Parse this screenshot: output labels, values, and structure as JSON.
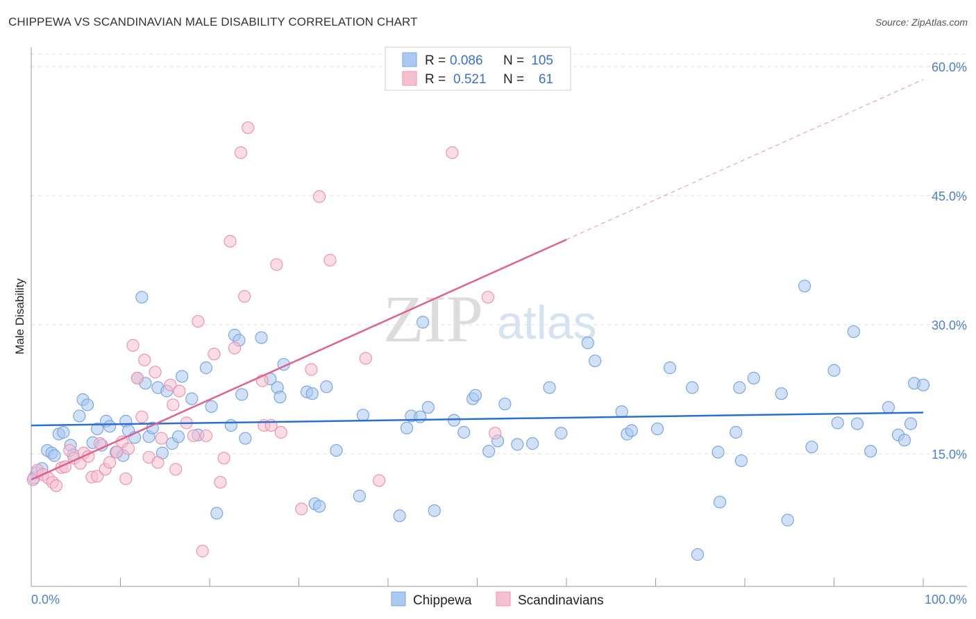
{
  "title": "CHIPPEWA VS SCANDINAVIAN MALE DISABILITY CORRELATION CHART",
  "source": "Source: ZipAtlas.com",
  "watermark": {
    "part1": "ZIP",
    "part2": "atlas"
  },
  "colors": {
    "chippewa_fill": "#aac8f0",
    "chippewa_stroke": "#7aa6e0",
    "chippewa_line": "#2a6fd0",
    "scandinavian_fill": "#f6bfd0",
    "scandinavian_stroke": "#ec95b0",
    "scandinavian_line": "#e06090",
    "tick_text": "#4a7fd0",
    "grid": "#dddddd"
  },
  "legend_top": {
    "rows": [
      {
        "r_label": "R =",
        "r_value": "0.086",
        "n_label": "N =",
        "n_value": "105"
      },
      {
        "r_label": "R =",
        "r_value": "0.521",
        "n_label": "N =",
        "n_value": "61"
      }
    ]
  },
  "legend_bottom": [
    "Chippewa",
    "Scandinavians"
  ],
  "chart_data": {
    "type": "scatter",
    "title": "CHIPPEWA VS SCANDINAVIAN MALE DISABILITY CORRELATION CHART",
    "xlabel": "",
    "ylabel": "Male Disability",
    "xlim": [
      0,
      100
    ],
    "ylim": [
      0,
      62
    ],
    "x_tick_labels": [
      "0.0%",
      "100.0%"
    ],
    "y_ticks": [
      15,
      30,
      45,
      60
    ],
    "y_tick_labels": [
      "15.0%",
      "30.0%",
      "45.0%",
      "60.0%"
    ],
    "grid": "horizontal dashed",
    "legend_position": "top-center",
    "series": [
      {
        "name": "Chippewa",
        "r": 0.086,
        "n": 105,
        "trend": {
          "x": [
            0,
            100
          ],
          "y": [
            18.3,
            19.8
          ]
        },
        "points": [
          [
            0.3,
            12.2
          ],
          [
            0.6,
            12.8
          ],
          [
            1.2,
            13.3
          ],
          [
            1.8,
            15.4
          ],
          [
            2.3,
            15.1
          ],
          [
            2.6,
            14.8
          ],
          [
            3.1,
            17.3
          ],
          [
            3.6,
            17.5
          ],
          [
            4.4,
            16.0
          ],
          [
            4.7,
            14.9
          ],
          [
            5.4,
            19.4
          ],
          [
            5.8,
            21.3
          ],
          [
            6.3,
            20.7
          ],
          [
            6.9,
            16.3
          ],
          [
            7.4,
            17.9
          ],
          [
            7.9,
            16.0
          ],
          [
            8.4,
            18.8
          ],
          [
            8.8,
            18.2
          ],
          [
            9.5,
            15.2
          ],
          [
            10.3,
            14.8
          ],
          [
            10.6,
            18.8
          ],
          [
            10.9,
            17.7
          ],
          [
            11.6,
            16.9
          ],
          [
            11.9,
            23.8
          ],
          [
            12.4,
            33.2
          ],
          [
            12.8,
            23.2
          ],
          [
            13.2,
            17.0
          ],
          [
            13.6,
            18.0
          ],
          [
            14.2,
            22.7
          ],
          [
            14.7,
            15.1
          ],
          [
            15.2,
            22.3
          ],
          [
            15.8,
            16.2
          ],
          [
            16.5,
            17.0
          ],
          [
            16.9,
            24.0
          ],
          [
            18.0,
            21.4
          ],
          [
            18.7,
            17.2
          ],
          [
            19.6,
            25.0
          ],
          [
            20.2,
            20.5
          ],
          [
            20.8,
            8.1
          ],
          [
            22.4,
            18.3
          ],
          [
            22.8,
            28.8
          ],
          [
            23.3,
            28.2
          ],
          [
            23.6,
            21.9
          ],
          [
            24.0,
            16.8
          ],
          [
            25.8,
            28.5
          ],
          [
            26.8,
            23.7
          ],
          [
            27.6,
            22.7
          ],
          [
            27.9,
            21.6
          ],
          [
            28.3,
            25.4
          ],
          [
            30.9,
            22.2
          ],
          [
            31.5,
            22.0
          ],
          [
            31.8,
            9.2
          ],
          [
            32.3,
            8.9
          ],
          [
            33.1,
            22.8
          ],
          [
            34.2,
            15.4
          ],
          [
            36.8,
            10.1
          ],
          [
            37.2,
            19.5
          ],
          [
            41.3,
            7.8
          ],
          [
            42.1,
            18.0
          ],
          [
            42.6,
            19.4
          ],
          [
            43.6,
            19.3
          ],
          [
            43.9,
            30.3
          ],
          [
            44.5,
            20.4
          ],
          [
            45.2,
            8.4
          ],
          [
            47.4,
            18.9
          ],
          [
            48.5,
            17.5
          ],
          [
            49.5,
            21.4
          ],
          [
            49.8,
            21.8
          ],
          [
            51.3,
            15.3
          ],
          [
            52.3,
            16.5
          ],
          [
            53.1,
            20.8
          ],
          [
            54.5,
            16.1
          ],
          [
            56.2,
            16.2
          ],
          [
            58.1,
            22.7
          ],
          [
            59.4,
            17.4
          ],
          [
            62.4,
            27.9
          ],
          [
            63.2,
            25.8
          ],
          [
            66.2,
            19.9
          ],
          [
            66.8,
            17.3
          ],
          [
            67.3,
            17.7
          ],
          [
            70.2,
            17.9
          ],
          [
            71.6,
            25.0
          ],
          [
            74.1,
            22.7
          ],
          [
            74.7,
            3.3
          ],
          [
            77.0,
            15.2
          ],
          [
            77.2,
            9.4
          ],
          [
            79.0,
            17.5
          ],
          [
            79.4,
            22.7
          ],
          [
            79.6,
            14.2
          ],
          [
            81.0,
            23.8
          ],
          [
            84.1,
            22.0
          ],
          [
            84.8,
            7.3
          ],
          [
            86.7,
            34.5
          ],
          [
            87.5,
            15.8
          ],
          [
            90.0,
            24.7
          ],
          [
            90.4,
            18.6
          ],
          [
            92.2,
            29.2
          ],
          [
            92.6,
            18.5
          ],
          [
            94.1,
            15.3
          ],
          [
            96.1,
            20.4
          ],
          [
            97.2,
            17.2
          ],
          [
            97.9,
            16.6
          ],
          [
            98.6,
            18.5
          ],
          [
            99.0,
            23.2
          ],
          [
            100.0,
            23.0
          ]
        ]
      },
      {
        "name": "Scandinavians",
        "r": 0.521,
        "n": 61,
        "trend": {
          "x": [
            0,
            60
          ],
          "y": [
            12.0,
            39.9
          ]
        },
        "trend_extended": {
          "x": [
            60,
            100
          ],
          "y": [
            39.9,
            58.5
          ]
        },
        "points": [
          [
            0.2,
            12.0
          ],
          [
            0.7,
            13.1
          ],
          [
            1.3,
            12.6
          ],
          [
            1.9,
            12.2
          ],
          [
            2.4,
            11.7
          ],
          [
            2.8,
            11.3
          ],
          [
            3.4,
            13.4
          ],
          [
            3.8,
            13.5
          ],
          [
            4.3,
            15.4
          ],
          [
            4.8,
            14.5
          ],
          [
            5.5,
            13.9
          ],
          [
            5.9,
            15.1
          ],
          [
            6.4,
            14.7
          ],
          [
            6.8,
            12.3
          ],
          [
            7.4,
            12.4
          ],
          [
            7.7,
            16.2
          ],
          [
            8.3,
            13.2
          ],
          [
            8.8,
            14.0
          ],
          [
            9.6,
            15.2
          ],
          [
            10.2,
            16.4
          ],
          [
            10.6,
            12.1
          ],
          [
            10.9,
            15.6
          ],
          [
            11.4,
            27.6
          ],
          [
            11.9,
            23.8
          ],
          [
            12.4,
            19.3
          ],
          [
            12.7,
            25.9
          ],
          [
            13.2,
            14.6
          ],
          [
            13.9,
            24.5
          ],
          [
            14.2,
            14.0
          ],
          [
            14.6,
            16.8
          ],
          [
            15.6,
            23.0
          ],
          [
            15.9,
            20.7
          ],
          [
            16.2,
            13.2
          ],
          [
            16.6,
            22.3
          ],
          [
            17.4,
            18.6
          ],
          [
            18.2,
            17.1
          ],
          [
            18.7,
            30.4
          ],
          [
            19.6,
            17.1
          ],
          [
            20.5,
            26.6
          ],
          [
            21.2,
            11.7
          ],
          [
            21.6,
            14.5
          ],
          [
            22.3,
            39.7
          ],
          [
            22.8,
            27.3
          ],
          [
            23.5,
            50.0
          ],
          [
            23.9,
            33.3
          ],
          [
            24.3,
            52.9
          ],
          [
            25.9,
            23.5
          ],
          [
            26.1,
            18.3
          ],
          [
            26.9,
            18.3
          ],
          [
            27.5,
            37.0
          ],
          [
            28.0,
            17.5
          ],
          [
            30.3,
            8.6
          ],
          [
            31.4,
            24.8
          ],
          [
            32.3,
            44.9
          ],
          [
            33.5,
            37.5
          ],
          [
            37.5,
            26.1
          ],
          [
            39.0,
            11.9
          ],
          [
            47.2,
            50.0
          ],
          [
            51.2,
            33.2
          ],
          [
            52.0,
            17.4
          ],
          [
            19.2,
            3.7
          ]
        ]
      }
    ]
  }
}
